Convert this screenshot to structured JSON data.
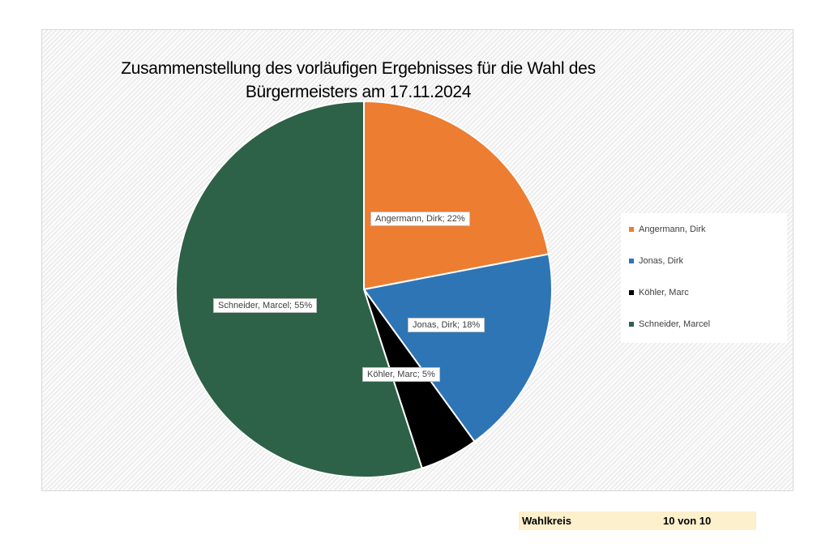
{
  "chart_data": {
    "type": "pie",
    "title": "Zusammenstellung des vorläufigen Ergebnisses für die Wahl des Bürgermeisters am 17.11.2024",
    "title_lines": [
      "Zusammenstellung des vorläufigen Ergebnisses für die Wahl des",
      "Bürgermeisters am 17.11.2024"
    ],
    "categories": [
      "Angermann, Dirk",
      "Jonas, Dirk",
      "Köhler, Marc",
      "Schneider, Marcel"
    ],
    "values": [
      22,
      18,
      5,
      55
    ],
    "unit": "%",
    "data_labels": [
      "Angermann, Dirk; 22%",
      "Jonas, Dirk; 18%",
      "Köhler, Marc; 5%",
      "Schneider, Marcel; 55%"
    ],
    "colors": [
      "#ed7d31",
      "#2e75b6",
      "#000000",
      "#2d6148"
    ],
    "legend_position": "right"
  },
  "footer": {
    "label": "Wahlkreis",
    "value": "10 von 10",
    "background": "#fdf0cc"
  }
}
